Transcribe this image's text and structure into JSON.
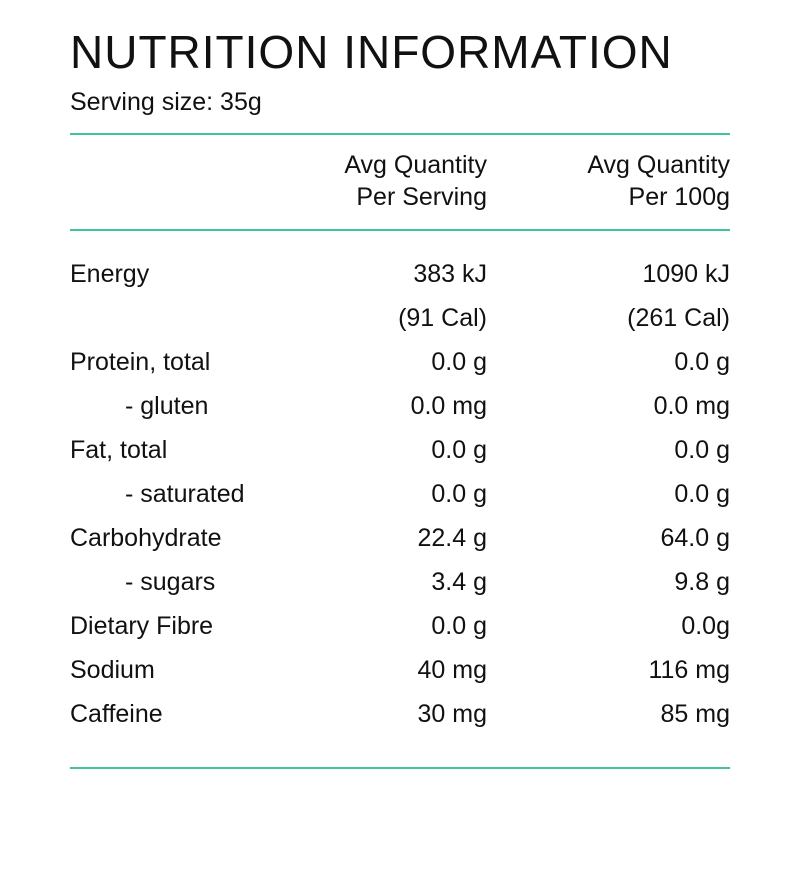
{
  "title": "NUTRITION INFORMATION",
  "serving_size": "Serving size: 35g",
  "colors": {
    "rule": "#3fc3a0",
    "text": "#111111"
  },
  "header": {
    "per_serving": "Avg Quantity\nPer Serving",
    "per_100g": "Avg Quantity\nPer 100g"
  },
  "table": {
    "rows": [
      {
        "label": "Energy",
        "per_serving": "383 kJ",
        "per_100g": "1090 kJ"
      },
      {
        "label": "",
        "per_serving": "(91 Cal)",
        "per_100g": "(261 Cal)"
      },
      {
        "label": "Protein, total",
        "per_serving": "0.0 g",
        "per_100g": "0.0 g"
      },
      {
        "label": "- gluten",
        "per_serving": "0.0 mg",
        "per_100g": "0.0 mg"
      },
      {
        "label": "Fat, total",
        "per_serving": "0.0 g",
        "per_100g": "0.0 g"
      },
      {
        "label": "- saturated",
        "per_serving": "0.0 g",
        "per_100g": "0.0 g"
      },
      {
        "label": "Carbohydrate",
        "per_serving": "22.4 g",
        "per_100g": "64.0 g"
      },
      {
        "label": "- sugars",
        "per_serving": "3.4 g",
        "per_100g": "9.8 g"
      },
      {
        "label": "Dietary Fibre",
        "per_serving": "0.0 g",
        "per_100g": "0.0g"
      },
      {
        "label": "Sodium",
        "per_serving": "40 mg",
        "per_100g": "116 mg"
      },
      {
        "label": "Caffeine",
        "per_serving": "30 mg",
        "per_100g": "85 mg"
      }
    ]
  }
}
